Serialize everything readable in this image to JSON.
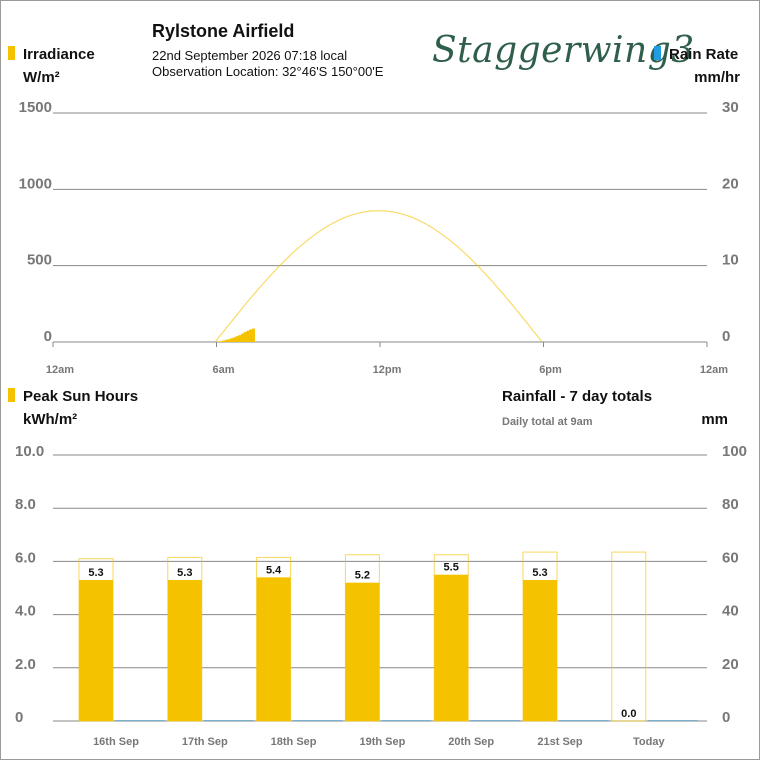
{
  "header": {
    "station_name": "Rylstone Airfield",
    "datetime": "22nd September 2026  07:18 local",
    "location": "Observation Location:  32°46'S 150°00'E",
    "logo_text": "Staggerwing3"
  },
  "colors": {
    "solar": "#f5c200",
    "rain": "#1f9de0",
    "grid": "#888888",
    "logo": "#2f5e4b"
  },
  "icons": {
    "solar_legend": "yellow-square-icon",
    "rain_legend": "blue-square-icon"
  },
  "chart_data": [
    {
      "type": "area",
      "left_label": "Irradiance",
      "left_unit": "W/m²",
      "right_label": "Rain Rate",
      "right_unit": "mm/hr",
      "left_ticks": [
        "1500",
        "1000",
        "500",
        "0"
      ],
      "right_ticks": [
        "30",
        "20",
        "10",
        "0"
      ],
      "ylim_left": [
        0,
        1500
      ],
      "ylim_right": [
        0,
        30
      ],
      "x_ticks": [
        "12am",
        "6am",
        "12pm",
        "6pm",
        "12am"
      ],
      "xlim_hours": [
        0,
        24
      ],
      "grid": true,
      "clear_sky_curve": {
        "sunrise_hour": 5.95,
        "sunset_hour": 17.95,
        "peak_value": 860
      },
      "irradiance_observed": [
        {
          "hour": 6.0,
          "value": 2
        },
        {
          "hour": 6.1,
          "value": 5
        },
        {
          "hour": 6.2,
          "value": 9
        },
        {
          "hour": 6.3,
          "value": 14
        },
        {
          "hour": 6.4,
          "value": 18
        },
        {
          "hour": 6.5,
          "value": 24
        },
        {
          "hour": 6.6,
          "value": 30
        },
        {
          "hour": 6.7,
          "value": 38
        },
        {
          "hour": 6.8,
          "value": 45
        },
        {
          "hour": 6.9,
          "value": 55
        },
        {
          "hour": 7.0,
          "value": 65
        },
        {
          "hour": 7.1,
          "value": 74
        },
        {
          "hour": 7.2,
          "value": 82
        },
        {
          "hour": 7.3,
          "value": 88
        }
      ],
      "rain_rate": []
    },
    {
      "type": "bar",
      "left_label": "Peak Sun Hours",
      "left_unit": "kWh/m²",
      "right_label": "Rainfall - 7 day totals",
      "right_subtitle": "Daily total at 9am",
      "right_unit": "mm",
      "left_ticks": [
        "10.0",
        "8.0",
        "6.0",
        "4.0",
        "2.0",
        "0"
      ],
      "right_ticks": [
        "100",
        "80",
        "60",
        "40",
        "20",
        "0"
      ],
      "ylim_left": [
        0,
        10
      ],
      "ylim_right": [
        0,
        100
      ],
      "grid": true,
      "categories": [
        "16th Sep",
        "17th Sep",
        "18th Sep",
        "19th Sep",
        "20th Sep",
        "21st Sep",
        "Today"
      ],
      "series": [
        {
          "name": "Peak Sun Hours",
          "values": [
            5.3,
            5.3,
            5.4,
            5.2,
            5.5,
            5.3,
            0.0
          ],
          "labels": [
            "5.3",
            "5.3",
            "5.4",
            "5.2",
            "5.5",
            "5.3",
            "0.0"
          ]
        },
        {
          "name": "Clear Sky Potential",
          "values": [
            6.1,
            6.15,
            6.15,
            6.25,
            6.25,
            6.35,
            6.35
          ]
        },
        {
          "name": "Rainfall",
          "values": [
            0,
            0,
            0,
            0,
            0,
            0,
            0
          ]
        }
      ]
    }
  ]
}
